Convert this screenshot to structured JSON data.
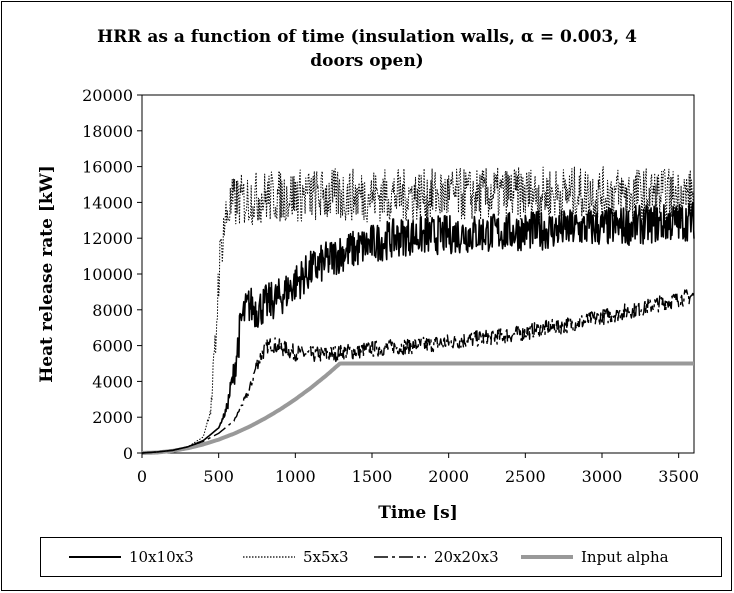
{
  "chart_data": {
    "type": "line",
    "title_line1": "HRR as a function of time (insulation walls, α = 0.003, 4",
    "title_line2": "doors open)",
    "xlabel": "Time [s]",
    "ylabel": "Heat release rate [kW]",
    "xlim": [
      0,
      3600
    ],
    "ylim": [
      0,
      20000
    ],
    "xticks": [
      0,
      500,
      1000,
      1500,
      2000,
      2500,
      3000,
      3500
    ],
    "yticks": [
      0,
      2000,
      4000,
      6000,
      8000,
      10000,
      12000,
      14000,
      16000,
      18000,
      20000
    ],
    "grid": false,
    "legend_position": "bottom",
    "series": [
      {
        "name": "10x10x3",
        "style": "solid-black",
        "x": [
          0,
          100,
          200,
          300,
          400,
          500,
          550,
          600,
          650,
          700,
          750,
          800,
          900,
          1000,
          1100,
          1200,
          1300,
          1400,
          1500,
          1700,
          2000,
          2500,
          3000,
          3500,
          3600
        ],
        "y": [
          0,
          60,
          150,
          350,
          700,
          1400,
          2400,
          4500,
          7500,
          8300,
          8000,
          8300,
          8700,
          9500,
          10200,
          10700,
          11200,
          11400,
          11700,
          12100,
          12200,
          12400,
          12600,
          12900,
          13000
        ],
        "noise": 1100
      },
      {
        "name": "5x5x3",
        "style": "dotted-black",
        "x": [
          0,
          100,
          200,
          300,
          400,
          450,
          480,
          500,
          530,
          560,
          600,
          700,
          800,
          1000,
          1500,
          2000,
          2500,
          3000,
          3500,
          3600
        ],
        "y": [
          0,
          60,
          150,
          350,
          900,
          2500,
          6000,
          10000,
          12500,
          13500,
          14000,
          14200,
          14300,
          14400,
          14400,
          14400,
          14500,
          14500,
          14400,
          14400
        ],
        "noise": 1500
      },
      {
        "name": "20x20x3",
        "style": "dashdot-black",
        "x": [
          0,
          100,
          200,
          300,
          400,
          500,
          600,
          700,
          750,
          800,
          850,
          900,
          1000,
          1100,
          1200,
          1400,
          1600,
          1800,
          2000,
          2200,
          2400,
          2600,
          2800,
          3000,
          3200,
          3400,
          3600
        ],
        "y": [
          0,
          60,
          150,
          350,
          650,
          1100,
          1800,
          3500,
          5000,
          5800,
          6100,
          5900,
          5600,
          5500,
          5500,
          5700,
          5900,
          6000,
          6200,
          6400,
          6600,
          6900,
          7200,
          7600,
          8000,
          8400,
          8800
        ],
        "noise": 450
      },
      {
        "name": "Input alpha",
        "style": "thick-gray",
        "x": [
          0,
          100,
          200,
          300,
          400,
          500,
          600,
          700,
          800,
          900,
          1000,
          1100,
          1200,
          1291,
          3600
        ],
        "y": [
          0,
          30,
          120,
          270,
          480,
          750,
          1080,
          1470,
          1920,
          2430,
          3000,
          3630,
          4320,
          5000,
          5000
        ],
        "noise": 0
      }
    ]
  },
  "colors": {
    "line": "#000000",
    "input_alpha": "#999999",
    "frame": "#000000",
    "background": "#ffffff"
  }
}
